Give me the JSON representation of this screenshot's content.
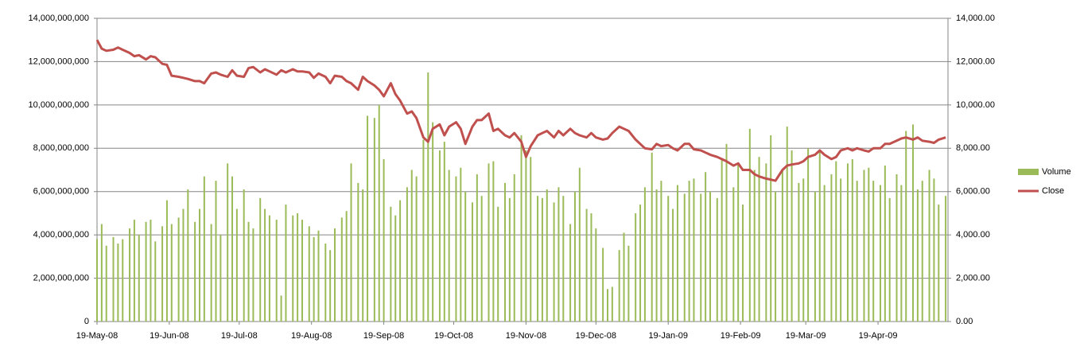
{
  "chart_data": {
    "type": "combo",
    "x": [
      "2008-05-19",
      "2008-05-21",
      "2008-05-23",
      "2008-05-26",
      "2008-05-28",
      "2008-05-30",
      "2008-06-02",
      "2008-06-04",
      "2008-06-06",
      "2008-06-09",
      "2008-06-11",
      "2008-06-13",
      "2008-06-16",
      "2008-06-18",
      "2008-06-20",
      "2008-06-23",
      "2008-06-25",
      "2008-06-27",
      "2008-06-30",
      "2008-07-02",
      "2008-07-04",
      "2008-07-07",
      "2008-07-09",
      "2008-07-11",
      "2008-07-14",
      "2008-07-16",
      "2008-07-18",
      "2008-07-21",
      "2008-07-23",
      "2008-07-25",
      "2008-07-28",
      "2008-07-30",
      "2008-08-01",
      "2008-08-04",
      "2008-08-06",
      "2008-08-08",
      "2008-08-11",
      "2008-08-13",
      "2008-08-15",
      "2008-08-18",
      "2008-08-20",
      "2008-08-22",
      "2008-08-25",
      "2008-08-27",
      "2008-08-29",
      "2008-09-01",
      "2008-09-03",
      "2008-09-05",
      "2008-09-08",
      "2008-09-10",
      "2008-09-12",
      "2008-09-15",
      "2008-09-17",
      "2008-09-19",
      "2008-09-22",
      "2008-09-24",
      "2008-09-26",
      "2008-09-29",
      "2008-10-01",
      "2008-10-03",
      "2008-10-06",
      "2008-10-08",
      "2008-10-10",
      "2008-10-13",
      "2008-10-15",
      "2008-10-17",
      "2008-10-20",
      "2008-10-22",
      "2008-10-24",
      "2008-10-27",
      "2008-10-29",
      "2008-10-31",
      "2008-11-03",
      "2008-11-05",
      "2008-11-07",
      "2008-11-10",
      "2008-11-12",
      "2008-11-14",
      "2008-11-17",
      "2008-11-19",
      "2008-11-21",
      "2008-11-24",
      "2008-11-26",
      "2008-11-28",
      "2008-12-01",
      "2008-12-03",
      "2008-12-05",
      "2008-12-08",
      "2008-12-10",
      "2008-12-12",
      "2008-12-15",
      "2008-12-17",
      "2008-12-19",
      "2008-12-22",
      "2008-12-24",
      "2008-12-26",
      "2008-12-29",
      "2008-12-31",
      "2009-01-02",
      "2009-01-05",
      "2009-01-07",
      "2009-01-09",
      "2009-01-12",
      "2009-01-14",
      "2009-01-16",
      "2009-01-19",
      "2009-01-21",
      "2009-01-23",
      "2009-01-26",
      "2009-01-28",
      "2009-01-30",
      "2009-02-02",
      "2009-02-04",
      "2009-02-06",
      "2009-02-09",
      "2009-02-11",
      "2009-02-13",
      "2009-02-16",
      "2009-02-18",
      "2009-02-20",
      "2009-02-23",
      "2009-02-25",
      "2009-02-27",
      "2009-03-02",
      "2009-03-04",
      "2009-03-06",
      "2009-03-09",
      "2009-03-11",
      "2009-03-13",
      "2009-03-16",
      "2009-03-18",
      "2009-03-20",
      "2009-03-23",
      "2009-03-25",
      "2009-03-27",
      "2009-03-30",
      "2009-04-01",
      "2009-04-03",
      "2009-04-06",
      "2009-04-08",
      "2009-04-10",
      "2009-04-13",
      "2009-04-15",
      "2009-04-17",
      "2009-04-20",
      "2009-04-22",
      "2009-04-24",
      "2009-04-27",
      "2009-04-29",
      "2009-05-01",
      "2009-05-04",
      "2009-05-06",
      "2009-05-08",
      "2009-05-11",
      "2009-05-13",
      "2009-05-15",
      "2009-05-18"
    ],
    "series": [
      {
        "name": "Volume",
        "type": "bar",
        "color": "#9bbb59",
        "values": [
          3800000000.0,
          4500000000.0,
          3500000000.0,
          3900000000.0,
          3600000000.0,
          3800000000.0,
          4300000000.0,
          4700000000.0,
          4000000000.0,
          4600000000.0,
          4700000000.0,
          3700000000.0,
          4400000000.0,
          5600000000.0,
          4500000000.0,
          4800000000.0,
          5200000000.0,
          6100000000.0,
          4600000000.0,
          5200000000.0,
          6700000000.0,
          4500000000.0,
          6500000000.0,
          4000000000.0,
          7300000000.0,
          6700000000.0,
          5200000000.0,
          6100000000.0,
          4600000000.0,
          4300000000.0,
          5700000000.0,
          5200000000.0,
          4900000000.0,
          4700000000.0,
          1200000000.0,
          5400000000.0,
          4900000000.0,
          5000000000.0,
          4700000000.0,
          4400000000.0,
          3900000000.0,
          4200000000.0,
          3600000000.0,
          3300000000.0,
          4300000000.0,
          4800000000.0,
          5100000000.0,
          7300000000.0,
          6400000000.0,
          6100000000.0,
          9500000000.0,
          9400000000.0,
          10000000000.0,
          7500000000.0,
          5300000000.0,
          4900000000.0,
          5600000000.0,
          6200000000.0,
          7000000000.0,
          6700000000.0,
          8400000000.0,
          11500000000.0,
          9200000000.0,
          7900000000.0,
          8300000000.0,
          7000000000.0,
          6700000000.0,
          7100000000.0,
          6000000000.0,
          5500000000.0,
          6800000000.0,
          5800000000.0,
          7300000000.0,
          7400000000.0,
          5300000000.0,
          6400000000.0,
          5700000000.0,
          6800000000.0,
          8600000000.0,
          7900000000.0,
          7600000000.0,
          5800000000.0,
          5700000000.0,
          6100000000.0,
          5500000000.0,
          6200000000.0,
          5800000000.0,
          4500000000.0,
          6000000000.0,
          7100000000.0,
          5200000000.0,
          5000000000.0,
          4300000000.0,
          3400000000.0,
          1500000000.0,
          1600000000.0,
          3300000000.0,
          4100000000.0,
          3500000000.0,
          5000000000.0,
          5400000000.0,
          6200000000.0,
          7800000000.0,
          6100000000.0,
          6500000000.0,
          5800000000.0,
          5200000000.0,
          6300000000.0,
          5900000000.0,
          6500000000.0,
          6600000000.0,
          5900000000.0,
          6900000000.0,
          6000000000.0,
          5700000000.0,
          7500000000.0,
          8200000000.0,
          6200000000.0,
          7300000000.0,
          5400000000.0,
          8900000000.0,
          7000000000.0,
          7600000000.0,
          7300000000.0,
          8600000000.0,
          6000000000.0,
          7000000000.0,
          9000000000.0,
          7900000000.0,
          6400000000.0,
          6600000000.0,
          8000000000.0,
          6000000000.0,
          7900000000.0,
          6300000000.0,
          6800000000.0,
          7400000000.0,
          6600000000.0,
          7300000000.0,
          7500000000.0,
          6500000000.0,
          7000000000.0,
          7100000000.0,
          6500000000.0,
          6300000000.0,
          7200000000.0,
          5700000000.0,
          6800000000.0,
          6300000000.0,
          8800000000.0,
          9100000000.0,
          6100000000.0,
          6500000000.0,
          7000000000.0,
          6600000000.0,
          5400000000.0,
          5800000000.0
        ]
      },
      {
        "name": "Close",
        "type": "line",
        "axis": "y2",
        "color": "#c0504d",
        "values": [
          13000,
          12600,
          12500,
          12550,
          12650,
          12550,
          12400,
          12250,
          12300,
          12100,
          12250,
          12200,
          11900,
          11850,
          11350,
          11300,
          11250,
          11200,
          11100,
          11100,
          11000,
          11450,
          11500,
          11400,
          11300,
          11600,
          11350,
          11300,
          11700,
          11750,
          11500,
          11650,
          11550,
          11400,
          11600,
          11500,
          11650,
          11550,
          11550,
          11500,
          11250,
          11450,
          11300,
          11000,
          11350,
          11300,
          11100,
          11000,
          10700,
          11300,
          11100,
          10900,
          10700,
          10400,
          11000,
          10500,
          10200,
          9600,
          9700,
          9400,
          8500,
          8300,
          8900,
          9100,
          8600,
          9000,
          9200,
          8900,
          8200,
          9000,
          9300,
          9300,
          9600,
          8800,
          8900,
          8600,
          8500,
          8700,
          8300,
          7600,
          8100,
          8600,
          8700,
          8800,
          8500,
          8800,
          8600,
          8900,
          8700,
          8600,
          8500,
          8700,
          8500,
          8400,
          8450,
          8700,
          9000,
          8900,
          8800,
          8400,
          8200,
          8000,
          7950,
          8200,
          8100,
          8150,
          8000,
          7900,
          8200,
          8200,
          7950,
          7900,
          7800,
          7700,
          7600,
          7500,
          7400,
          7200,
          7300,
          7000,
          7000,
          6800,
          6700,
          6600,
          6550,
          6500,
          7000,
          7200,
          7250,
          7300,
          7400,
          7600,
          7700,
          7900,
          7700,
          7500,
          7600,
          7900,
          8000,
          7900,
          8000,
          7900,
          7850,
          8000,
          8000,
          8200,
          8200,
          8350,
          8450,
          8500,
          8400,
          8500,
          8350,
          8300,
          8250,
          8400,
          8500
        ]
      }
    ],
    "xlim": [
      "2008-05-19",
      "2009-05-19"
    ],
    "xticks": [
      {
        "value": "2008-05-19",
        "label": "19-May-08"
      },
      {
        "value": "2008-06-19",
        "label": "19-Jun-08"
      },
      {
        "value": "2008-07-19",
        "label": "19-Jul-08"
      },
      {
        "value": "2008-08-19",
        "label": "19-Aug-08"
      },
      {
        "value": "2008-09-19",
        "label": "19-Sep-08"
      },
      {
        "value": "2008-10-19",
        "label": "19-Oct-08"
      },
      {
        "value": "2008-11-19",
        "label": "19-Nov-08"
      },
      {
        "value": "2008-12-19",
        "label": "19-Dec-08"
      },
      {
        "value": "2009-01-19",
        "label": "19-Jan-09"
      },
      {
        "value": "2009-02-19",
        "label": "19-Feb-09"
      },
      {
        "value": "2009-03-19",
        "label": "19-Mar-09"
      },
      {
        "value": "2009-04-19",
        "label": "19-Apr-09"
      }
    ],
    "ylim": [
      0,
      14000000000
    ],
    "yticks": [
      0,
      {
        "value": 2000000000,
        "label": "2,000,000,000"
      },
      {
        "value": 4000000000,
        "label": "4,000,000,000"
      },
      {
        "value": 6000000000,
        "label": "6,000,000,000"
      },
      {
        "value": 8000000000,
        "label": "8,000,000,000"
      },
      {
        "value": 10000000000,
        "label": "10,000,000,000"
      },
      {
        "value": 12000000000,
        "label": "12,000,000,000"
      },
      {
        "value": 14000000000,
        "label": "14,000,000,000"
      }
    ],
    "y2lim": [
      0,
      14000
    ],
    "y2ticks": [
      {
        "value": 0,
        "label": "0.00"
      },
      {
        "value": 2000,
        "label": "2,000.00"
      },
      {
        "value": 4000,
        "label": "4,000.00"
      },
      {
        "value": 6000,
        "label": "6,000.00"
      },
      {
        "value": 8000,
        "label": "8,000.00"
      },
      {
        "value": 10000,
        "label": "10,000.00"
      },
      {
        "value": 12000,
        "label": "12,000.00"
      },
      {
        "value": 14000,
        "label": "14,000.00"
      }
    ],
    "grid": true,
    "legend": "right"
  }
}
